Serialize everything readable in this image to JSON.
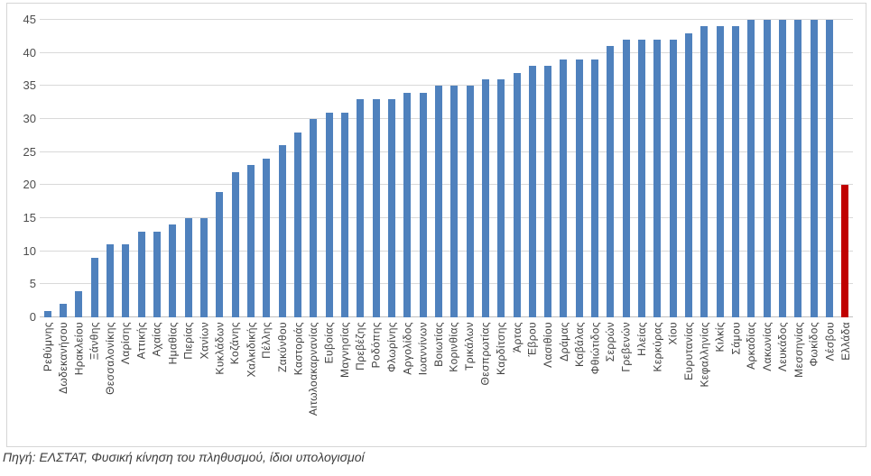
{
  "chart_data": {
    "type": "bar",
    "categories": [
      "Ρεθύμνης",
      "Δωδεκανήσου",
      "Ηρακλείου",
      "Ξάνθης",
      "Θεσσαλονίκης",
      "Λαρίσης",
      "Αττικής",
      "Αχαίας",
      "Ημαθίας",
      "Πιερίας",
      "Χανίων",
      "Κυκλάδων",
      "Κοζάνης",
      "Χαλκιδικής",
      "Πέλλης",
      "Ζακύνθου",
      "Καστοριάς",
      "Αιτωλοακαρνανίας",
      "Ευβοίας",
      "Μαγνησίας",
      "Πρεβέζης",
      "Ροδόπης",
      "Φλωρίνης",
      "Αργολίδος",
      "Ιωαννίνων",
      "Βοιωτίας",
      "Κορινθίας",
      "Τρικάλων",
      "Θεσπρωτίας",
      "Καρδίτσης",
      "Άρτας",
      "Έβρου",
      "Λασιθίου",
      "Δράμας",
      "Καβάλας",
      "Φθιώτιδος",
      "Σερρών",
      "Γρεβενών",
      "Ηλείας",
      "Κερκύρας",
      "Χίου",
      "Ευρυτανίας",
      "Κεφαλληνίας",
      "Κιλκίς",
      "Σάμου",
      "Αρκαδίας",
      "Λακωνίας",
      "Λευκάδος",
      "Μεσσηνίας",
      "Φωκίδος",
      "Λέσβου",
      "Ελλάδα"
    ],
    "values": [
      1,
      2,
      4,
      9,
      11,
      11,
      13,
      13,
      14,
      15,
      15,
      19,
      22,
      23,
      24,
      26,
      28,
      30,
      31,
      31,
      33,
      33,
      33,
      34,
      34,
      35,
      35,
      35,
      36,
      36,
      37,
      38,
      38,
      39,
      39,
      39,
      41,
      42,
      42,
      42,
      42,
      43,
      44,
      44,
      44,
      45,
      45,
      45,
      45,
      45,
      45,
      20
    ],
    "ylim": [
      0,
      45
    ],
    "ytick_interval": 5,
    "yticks": [
      0,
      5,
      10,
      15,
      20,
      25,
      30,
      35,
      40,
      45
    ],
    "grid": true,
    "legend": false,
    "bar_color": "#4f81bd",
    "highlight_category": "Ελλάδα",
    "highlight_color": "#c00000",
    "gridline_color": "#d9d9d9",
    "axis_line_color": "#bfbfbf",
    "tick_label_color": "#404040"
  },
  "source_note": "Πηγή: ΕΛΣΤΑΤ, Φυσική κίνηση του πληθυσμού, ίδιοι υπολογισμοί"
}
